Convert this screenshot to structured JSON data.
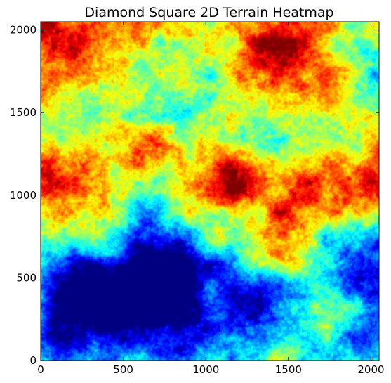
{
  "chart_data": {
    "type": "heatmap",
    "title": "Diamond Square 2D Terrain Heatmap",
    "xlabel": "",
    "ylabel": "",
    "xlim": [
      0,
      2049
    ],
    "ylim": [
      0,
      2049
    ],
    "x_ticks": [
      0,
      500,
      1000,
      1500,
      2000
    ],
    "y_ticks": [
      0,
      500,
      1000,
      1500,
      2000
    ],
    "colormap": "jet",
    "grid": false,
    "legend": "none",
    "value_range": [
      0,
      1
    ],
    "low_regions": [
      {
        "x": 150,
        "y": 350,
        "strength": 0.95
      },
      {
        "x": 400,
        "y": 300,
        "strength": 0.7
      },
      {
        "x": 650,
        "y": 450,
        "strength": 0.75
      },
      {
        "x": 900,
        "y": 550,
        "strength": 0.85
      },
      {
        "x": 1000,
        "y": 150,
        "strength": 0.7
      },
      {
        "x": 1300,
        "y": 350,
        "strength": 0.55
      },
      {
        "x": 1950,
        "y": 450,
        "strength": 0.75
      },
      {
        "x": 300,
        "y": 650,
        "strength": 0.55
      },
      {
        "x": 750,
        "y": 1650,
        "strength": 0.35
      },
      {
        "x": 1900,
        "y": 1750,
        "strength": 0.3
      },
      {
        "x": 300,
        "y": 1500,
        "strength": 0.25
      }
    ],
    "high_regions": [
      {
        "x": 1450,
        "y": 1900,
        "strength": 1.0
      },
      {
        "x": 650,
        "y": 1250,
        "strength": 0.85
      },
      {
        "x": 80,
        "y": 1150,
        "strength": 0.9
      },
      {
        "x": 1200,
        "y": 1150,
        "strength": 0.75
      },
      {
        "x": 1450,
        "y": 1000,
        "strength": 0.55
      },
      {
        "x": 1400,
        "y": 50,
        "strength": 0.55
      },
      {
        "x": 2000,
        "y": 1000,
        "strength": 0.5
      },
      {
        "x": 300,
        "y": 1900,
        "strength": 0.4
      },
      {
        "x": 1200,
        "y": 1600,
        "strength": 0.4
      },
      {
        "x": 1600,
        "y": 700,
        "strength": 0.35
      }
    ]
  }
}
